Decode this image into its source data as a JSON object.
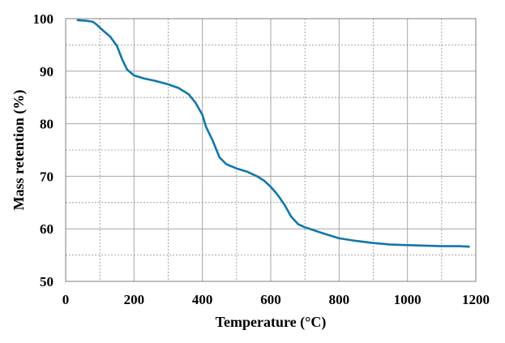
{
  "chart_data": {
    "type": "line",
    "xlabel": "Temperature (°C)",
    "ylabel": "Mass retention (%)",
    "xlim": [
      0,
      1200
    ],
    "ylim": [
      50,
      100
    ],
    "xticks": [
      0,
      200,
      400,
      600,
      800,
      1000,
      1200
    ],
    "yticks": [
      50,
      60,
      70,
      80,
      90,
      100
    ],
    "grid": true,
    "legend": "none",
    "series": [
      {
        "color": "#1177a8",
        "x": [
          35,
          60,
          80,
          90,
          110,
          130,
          150,
          165,
          180,
          200,
          230,
          260,
          300,
          330,
          360,
          380,
          400,
          410,
          430,
          450,
          470,
          500,
          530,
          560,
          580,
          600,
          620,
          640,
          660,
          680,
          700,
          750,
          800,
          850,
          900,
          950,
          1000,
          1050,
          1100,
          1150,
          1180
        ],
        "y": [
          99.7,
          99.6,
          99.4,
          98.9,
          97.7,
          96.6,
          94.8,
          92.3,
          90.3,
          89.2,
          88.6,
          88.2,
          87.5,
          86.8,
          85.6,
          84.0,
          81.7,
          79.5,
          76.8,
          73.6,
          72.3,
          71.5,
          70.9,
          70.0,
          69.2,
          68.0,
          66.5,
          64.6,
          62.3,
          60.9,
          60.3,
          59.2,
          58.2,
          57.7,
          57.3,
          57.0,
          56.9,
          56.8,
          56.7,
          56.7,
          56.6
        ]
      }
    ]
  }
}
